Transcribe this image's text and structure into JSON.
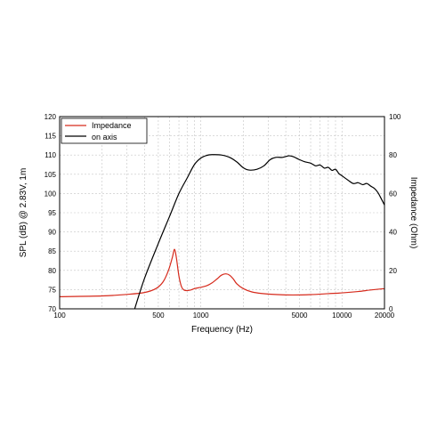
{
  "chart_data": {
    "type": "line",
    "title": "",
    "xlabel": "Frequency (Hz)",
    "ylabel_left": "SPL (dB) @ 2.83V, 1m",
    "ylabel_right": "Impedance (Ohm)",
    "xscale": "log",
    "xlim": [
      100,
      20000
    ],
    "ylim_left": [
      70,
      120
    ],
    "ylim_right": [
      0,
      100
    ],
    "grid": true,
    "legend_position": "top-left",
    "x_tick_labels": [
      "100",
      "500",
      "1000",
      "5000",
      "10000",
      "20000"
    ],
    "x_tick_values": [
      100,
      500,
      1000,
      5000,
      10000,
      20000
    ],
    "y_left_ticks": [
      70,
      75,
      80,
      85,
      90,
      95,
      100,
      105,
      110,
      115,
      120
    ],
    "y_right_ticks": [
      0,
      20,
      40,
      60,
      80,
      100
    ],
    "series": [
      {
        "name": "Impedance",
        "axis": "right",
        "color": "#d62a1c",
        "x": [
          100,
          200,
          300,
          400,
          480,
          540,
          590,
          630,
          650,
          670,
          700,
          730,
          760,
          800,
          850,
          900,
          1000,
          1100,
          1200,
          1300,
          1400,
          1500,
          1600,
          1700,
          1800,
          2000,
          2300,
          2700,
          3500,
          4500,
          6000,
          8000,
          10000,
          13000,
          16000,
          20000
        ],
        "y": [
          6.3,
          6.7,
          7.5,
          8.5,
          10.5,
          14,
          20,
          27,
          31,
          27,
          17,
          11.5,
          9.8,
          9.5,
          9.8,
          10.5,
          11.2,
          12,
          13.5,
          15.5,
          17.5,
          18.2,
          17.5,
          15.5,
          13,
          10.5,
          8.8,
          8,
          7.4,
          7.2,
          7.4,
          7.9,
          8.3,
          9,
          9.8,
          10.5
        ]
      },
      {
        "name": "on axis",
        "axis": "left",
        "color": "#000000",
        "x": [
          340,
          400,
          500,
          600,
          700,
          800,
          900,
          1000,
          1100,
          1200,
          1400,
          1600,
          1800,
          2000,
          2200,
          2500,
          2800,
          3100,
          3400,
          3800,
          4200,
          4500,
          5000,
          5500,
          6000,
          6500,
          7000,
          7500,
          8000,
          8500,
          9000,
          9500,
          10000,
          11000,
          12000,
          13000,
          14000,
          15000,
          16000,
          17000,
          18000,
          19000,
          20000
        ],
        "y": [
          70,
          78,
          87,
          94,
          100,
          104,
          107.5,
          109.2,
          109.9,
          110.1,
          110,
          109.4,
          108.2,
          106.7,
          106.1,
          106.3,
          107.2,
          108.8,
          109.4,
          109.4,
          109.8,
          109.6,
          108.8,
          108.2,
          107.9,
          107.2,
          107.4,
          106.6,
          106.8,
          106,
          106.3,
          105.2,
          104.6,
          103.5,
          102.6,
          102.8,
          102.3,
          102.6,
          101.9,
          101.3,
          100.2,
          98.6,
          97
        ]
      }
    ]
  }
}
